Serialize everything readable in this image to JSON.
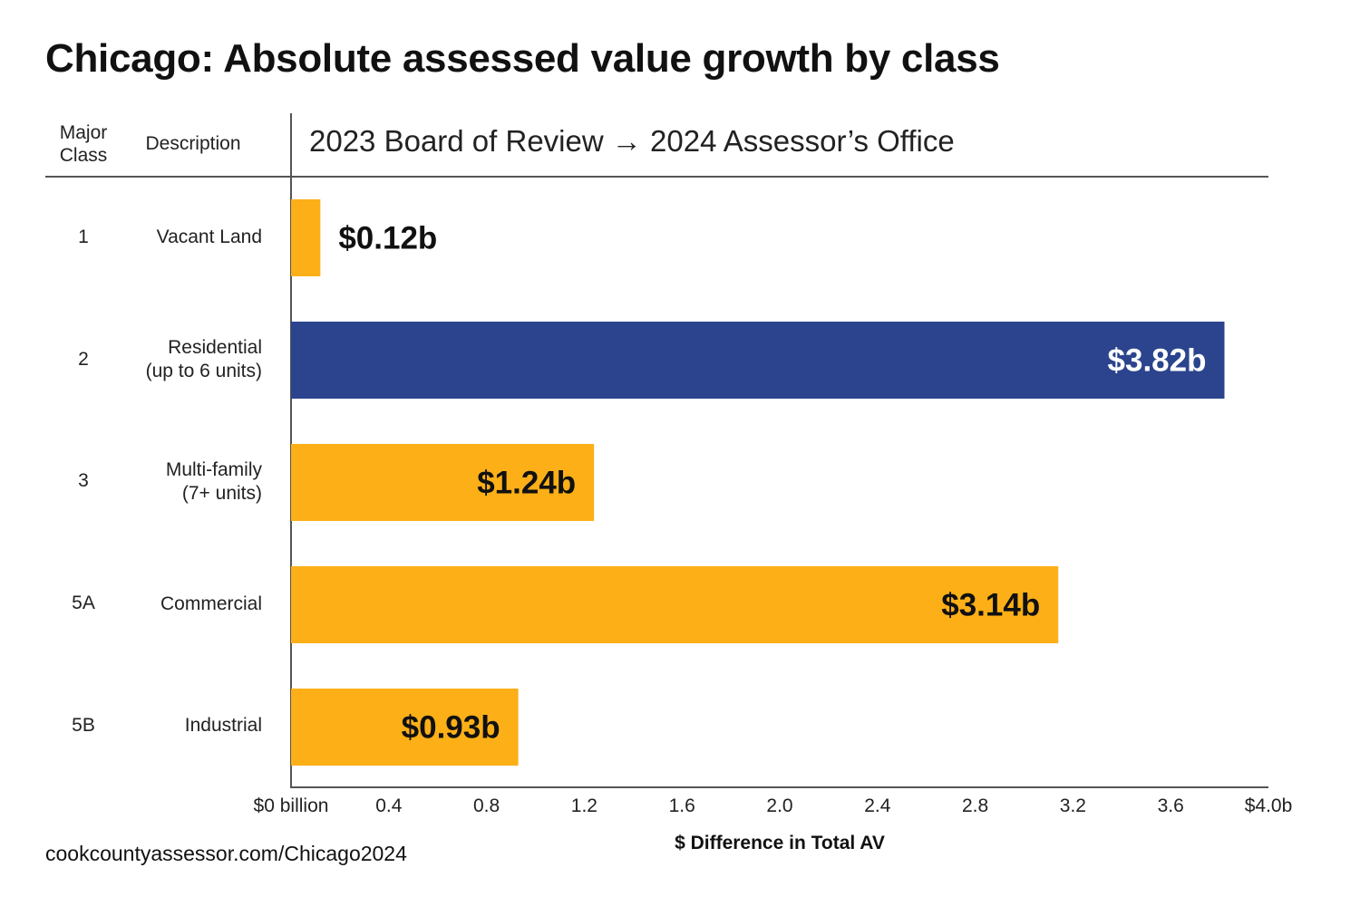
{
  "title": "Chicago: Absolute assessed value growth by class",
  "subtitle": "2023 Board of Review → 2024 Assessor’s Office",
  "columns": {
    "major_class_line1": "Major",
    "major_class_line2": "Class",
    "description": "Description"
  },
  "source": "cookcountyassessor.com/Chicago2024",
  "chart_data": {
    "type": "bar",
    "orientation": "horizontal",
    "title": "Chicago: Absolute assessed value growth by class",
    "subtitle": "2023 Board of Review → 2024 Assessor’s Office",
    "xlabel": "$ Difference in Total AV",
    "ylabel": "",
    "xlim": [
      0,
      4.0
    ],
    "x_ticks": [
      0,
      0.4,
      0.8,
      1.2,
      1.6,
      2.0,
      2.4,
      2.8,
      3.2,
      3.6,
      4.0
    ],
    "x_tick_labels": [
      "$0 billion",
      "0.4",
      "0.8",
      "1.2",
      "1.6",
      "2.0",
      "2.4",
      "2.8",
      "3.2",
      "3.6",
      "$4.0b"
    ],
    "grid": false,
    "categories": [
      {
        "class": "1",
        "description_line1": "Vacant Land",
        "description_line2": ""
      },
      {
        "class": "2",
        "description_line1": "Residential",
        "description_line2": "(up to 6 units)"
      },
      {
        "class": "3",
        "description_line1": "Multi-family",
        "description_line2": "(7+ units)"
      },
      {
        "class": "5A",
        "description_line1": "Commercial",
        "description_line2": ""
      },
      {
        "class": "5B",
        "description_line1": "Industrial",
        "description_line2": ""
      }
    ],
    "values": [
      0.12,
      3.82,
      1.24,
      3.14,
      0.93
    ],
    "value_labels": [
      "$0.12b",
      "$3.82b",
      "$1.24b",
      "$3.14b",
      "$0.93b"
    ],
    "colors": [
      "#FCAF17",
      "#2B448D",
      "#FCAF17",
      "#FCAF17",
      "#FCAF17"
    ],
    "label_colors": [
      "#111111",
      "#ffffff",
      "#111111",
      "#111111",
      "#111111"
    ]
  }
}
